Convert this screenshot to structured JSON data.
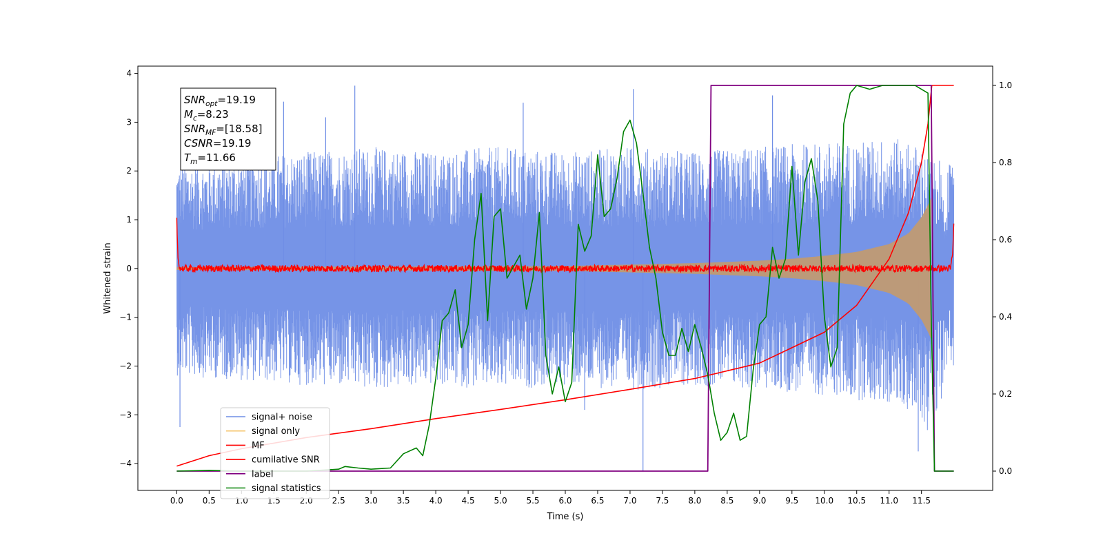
{
  "chart_data": {
    "type": "line",
    "title": "",
    "xlabel": "Time (s)",
    "ylabel": "Whitened strain",
    "xlim": [
      -0.6,
      12.6
    ],
    "ylim": [
      -4.55,
      4.15
    ],
    "y2lim": [
      -0.05,
      1.05
    ],
    "x_ticks": [
      0.0,
      0.5,
      1.0,
      1.5,
      2.0,
      2.5,
      3.0,
      3.5,
      4.0,
      4.5,
      5.0,
      5.5,
      6.0,
      6.5,
      7.0,
      7.5,
      8.0,
      8.5,
      9.0,
      9.5,
      10.0,
      10.5,
      11.0,
      11.5
    ],
    "x_tick_labels": [
      "0.0",
      "0.5",
      "1.0",
      "1.5",
      "2.0",
      "2.5",
      "3.0",
      "3.5",
      "4.0",
      "4.5",
      "5.0",
      "5.5",
      "6.0",
      "6.5",
      "7.0",
      "7.5",
      "8.0",
      "8.5",
      "9.0",
      "9.5",
      "10.0",
      "10.5",
      "11.0",
      "11.5"
    ],
    "y_ticks": [
      4,
      3,
      2,
      1,
      0,
      -1,
      -2,
      -3,
      -4
    ],
    "y_tick_labels": [
      "4",
      "3",
      "2",
      "1",
      "0",
      "−1",
      "−2",
      "−3",
      "−4"
    ],
    "y2_ticks": [
      1.0,
      0.8,
      0.6,
      0.4,
      0.2,
      0.0
    ],
    "y2_tick_labels": [
      "1.0",
      "0.8",
      "0.6",
      "0.4",
      "0.2",
      "0.0"
    ],
    "legend_position": "lower-left",
    "grid": false,
    "annotation": {
      "lines": [
        {
          "sym": "SNR",
          "sub": "opt",
          "value": "=19.19"
        },
        {
          "sym": "M",
          "sub": "c",
          "value": "=8.23"
        },
        {
          "sym": "SNR",
          "sub": "MF",
          "value": "=[18.58]"
        },
        {
          "sym": "CSNR",
          "sub": "",
          "value": "=19.19"
        },
        {
          "sym": "T",
          "sub": "m",
          "value": "=11.66"
        }
      ]
    },
    "series": [
      {
        "name": "signal+ noise",
        "color": "#6f8ee6",
        "axis": "left",
        "envelope": {
          "x": [
            0.0,
            1.0,
            2.0,
            3.0,
            4.0,
            5.0,
            6.0,
            7.0,
            8.0,
            9.0,
            10.0,
            10.5,
            11.0,
            11.3,
            11.5,
            11.6,
            12.0
          ],
          "upper": [
            2.2,
            2.3,
            2.4,
            2.5,
            2.4,
            2.5,
            2.4,
            2.5,
            2.4,
            2.5,
            2.6,
            2.6,
            2.7,
            2.6,
            2.5,
            2.3,
            2.1
          ],
          "lower": [
            -2.2,
            -2.3,
            -2.4,
            -2.5,
            -2.4,
            -2.5,
            -2.4,
            -2.5,
            -2.4,
            -2.5,
            -2.6,
            -2.7,
            -2.8,
            -2.9,
            -3.1,
            -3.4,
            -2.0
          ]
        },
        "spikes": [
          {
            "x": 0.05,
            "y": -3.25
          },
          {
            "x": 1.65,
            "y": 3.42
          },
          {
            "x": 2.3,
            "y": 3.1
          },
          {
            "x": 2.75,
            "y": 3.75
          },
          {
            "x": 5.35,
            "y": 3.4
          },
          {
            "x": 6.3,
            "y": -2.9
          },
          {
            "x": 7.05,
            "y": 3.68
          },
          {
            "x": 7.2,
            "y": -4.15
          },
          {
            "x": 9.2,
            "y": 3.55
          },
          {
            "x": 11.45,
            "y": -3.75
          }
        ]
      },
      {
        "name": "signal only",
        "color": "#f5c46c",
        "axis": "left",
        "envelope": {
          "x": [
            0.0,
            6.0,
            7.0,
            8.0,
            9.0,
            9.5,
            10.0,
            10.5,
            11.0,
            11.3,
            11.5,
            11.6,
            11.65
          ],
          "amp": [
            0.03,
            0.05,
            0.08,
            0.11,
            0.16,
            0.2,
            0.26,
            0.34,
            0.5,
            0.72,
            1.05,
            1.3,
            1.45
          ]
        }
      },
      {
        "name": "MF",
        "color": "#ff0000",
        "axis": "left",
        "noise_amp": 0.07,
        "x": [
          0.0,
          0.02,
          0.05,
          11.95,
          11.98,
          12.0
        ],
        "y": [
          1.0,
          0.2,
          0.0,
          0.0,
          0.3,
          0.88
        ]
      },
      {
        "name": "cumilative SNR",
        "color": "#ff0000",
        "axis": "right",
        "x": [
          0.0,
          0.5,
          1.0,
          2.0,
          3.0,
          4.0,
          5.0,
          6.0,
          7.0,
          8.0,
          9.0,
          10.0,
          10.5,
          11.0,
          11.3,
          11.5,
          11.6,
          11.66,
          11.7,
          12.0
        ],
        "y": [
          0.013,
          0.04,
          0.058,
          0.087,
          0.11,
          0.136,
          0.16,
          0.185,
          0.212,
          0.24,
          0.28,
          0.36,
          0.43,
          0.55,
          0.67,
          0.8,
          0.9,
          1.0,
          1.0,
          1.0
        ]
      },
      {
        "name": "label",
        "color": "#800080",
        "axis": "right",
        "x": [
          0.0,
          8.2,
          8.25,
          11.65,
          11.7,
          12.0
        ],
        "y": [
          0.0,
          0.0,
          1.0,
          1.0,
          0.0,
          0.0
        ]
      },
      {
        "name": "signal statistics",
        "color": "#008000",
        "axis": "right",
        "x": [
          0.0,
          0.5,
          1.0,
          1.5,
          2.0,
          2.5,
          2.6,
          2.8,
          3.0,
          3.3,
          3.5,
          3.7,
          3.8,
          3.9,
          4.0,
          4.1,
          4.2,
          4.3,
          4.4,
          4.5,
          4.6,
          4.7,
          4.8,
          4.9,
          5.0,
          5.1,
          5.2,
          5.3,
          5.4,
          5.5,
          5.6,
          5.7,
          5.8,
          5.9,
          6.0,
          6.1,
          6.2,
          6.3,
          6.4,
          6.5,
          6.6,
          6.7,
          6.8,
          6.9,
          7.0,
          7.1,
          7.2,
          7.3,
          7.4,
          7.5,
          7.6,
          7.7,
          7.8,
          7.9,
          8.0,
          8.1,
          8.2,
          8.3,
          8.4,
          8.5,
          8.6,
          8.7,
          8.8,
          8.9,
          9.0,
          9.1,
          9.2,
          9.3,
          9.4,
          9.5,
          9.6,
          9.7,
          9.8,
          9.9,
          10.0,
          10.1,
          10.2,
          10.3,
          10.4,
          10.5,
          10.7,
          10.9,
          11.0,
          11.2,
          11.4,
          11.6,
          11.65,
          11.7,
          12.0
        ],
        "y": [
          0.0,
          0.002,
          0.0,
          0.0,
          0.0,
          0.005,
          0.012,
          0.008,
          0.005,
          0.008,
          0.045,
          0.06,
          0.04,
          0.12,
          0.24,
          0.39,
          0.41,
          0.47,
          0.32,
          0.38,
          0.6,
          0.72,
          0.39,
          0.66,
          0.68,
          0.5,
          0.53,
          0.56,
          0.42,
          0.5,
          0.67,
          0.3,
          0.2,
          0.27,
          0.18,
          0.23,
          0.64,
          0.57,
          0.61,
          0.82,
          0.66,
          0.68,
          0.76,
          0.88,
          0.91,
          0.85,
          0.72,
          0.58,
          0.5,
          0.36,
          0.3,
          0.3,
          0.37,
          0.31,
          0.38,
          0.32,
          0.25,
          0.15,
          0.08,
          0.1,
          0.15,
          0.08,
          0.09,
          0.26,
          0.38,
          0.4,
          0.58,
          0.5,
          0.55,
          0.79,
          0.56,
          0.75,
          0.81,
          0.7,
          0.4,
          0.27,
          0.32,
          0.9,
          0.98,
          1.0,
          0.99,
          1.0,
          1.0,
          1.0,
          1.0,
          0.98,
          0.4,
          0.0,
          0.0
        ]
      }
    ]
  }
}
